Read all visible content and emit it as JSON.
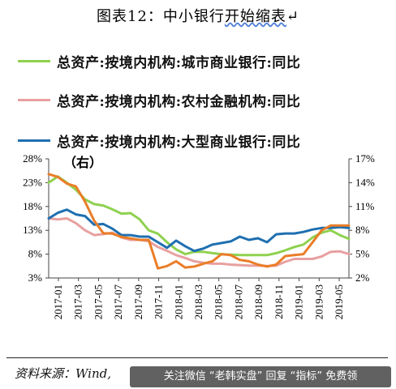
{
  "title_main": "图表12：中小银行",
  "title_underlined": "开始缩表",
  "title_tail": "↵",
  "source_text": "资料来源：Wind,",
  "watermark_text": "关注微信 “老韩实盘” 回复 “指标” 免费领",
  "chart_data": {
    "type": "line",
    "annotation": "（右）",
    "x_tick_labels": [
      "2017-01",
      "2017-03",
      "2017-05",
      "2017-07",
      "2017-09",
      "2017-11",
      "2018-01",
      "2018-03",
      "2018-05",
      "2018-07",
      "2018-09",
      "2018-11",
      "2019-01",
      "2019-03",
      "2019-05"
    ],
    "left_axis": {
      "min": 3,
      "max": 28,
      "ticks": [
        "3%",
        "8%",
        "13%",
        "18%",
        "23%",
        "28%"
      ],
      "tick_values": [
        3,
        8,
        13,
        18,
        23,
        28
      ]
    },
    "right_axis": {
      "min": 2,
      "max": 17,
      "ticks": [
        "2%",
        "5%",
        "8%",
        "11%",
        "14%",
        "17%"
      ],
      "tick_values": [
        2,
        5,
        8,
        11,
        14,
        17
      ]
    },
    "grid": false,
    "legend_position": "top",
    "series": [
      {
        "name": "总资产:按境内机构:城市商业银行:同比",
        "axis": "left",
        "color": "#8fd14f",
        "points": [
          [
            0,
            23
          ],
          [
            1,
            24.3
          ],
          [
            2,
            23
          ],
          [
            3,
            21.5
          ],
          [
            4,
            19.5
          ],
          [
            5,
            18.5
          ],
          [
            6,
            18.2
          ],
          [
            7,
            17.4
          ],
          [
            8,
            16.5
          ],
          [
            9,
            16.6
          ],
          [
            10,
            15.3
          ],
          [
            11,
            13
          ],
          [
            12,
            12.3
          ],
          [
            13,
            10.5
          ],
          [
            14,
            9
          ],
          [
            15,
            8
          ],
          [
            16,
            8.5
          ],
          [
            17,
            8.5
          ],
          [
            18,
            8.2
          ],
          [
            19,
            8
          ],
          [
            20,
            7.9
          ],
          [
            21,
            7.8
          ],
          [
            22,
            7.8
          ],
          [
            23,
            7.8
          ],
          [
            24,
            7.8
          ],
          [
            25,
            8.2
          ],
          [
            26,
            8.8
          ],
          [
            27,
            9.5
          ],
          [
            28,
            10
          ],
          [
            29,
            11.5
          ],
          [
            30,
            12.5
          ],
          [
            31,
            13
          ],
          [
            32,
            12
          ],
          [
            33,
            11.2
          ]
        ]
      },
      {
        "name": "总资产:按境内机构:农村金融机构:同比",
        "axis": "left",
        "color": "#e8a0a0",
        "points": [
          [
            0,
            15.5
          ],
          [
            1,
            15.3
          ],
          [
            2,
            15.5
          ],
          [
            3,
            14.5
          ],
          [
            4,
            13
          ],
          [
            5,
            12
          ],
          [
            6,
            12.2
          ],
          [
            7,
            12.5
          ],
          [
            8,
            11.5
          ],
          [
            9,
            11
          ],
          [
            10,
            11
          ],
          [
            11,
            10.7
          ],
          [
            12,
            9.5
          ],
          [
            13,
            8.7
          ],
          [
            14,
            7.8
          ],
          [
            15,
            7.2
          ],
          [
            16,
            6.5
          ],
          [
            17,
            6.2
          ],
          [
            18,
            6
          ],
          [
            19,
            6
          ],
          [
            20,
            5.8
          ],
          [
            21,
            5.7
          ],
          [
            22,
            5.6
          ],
          [
            23,
            5.6
          ],
          [
            24,
            5.5
          ],
          [
            25,
            5.6
          ],
          [
            26,
            6.4
          ],
          [
            27,
            7
          ],
          [
            28,
            7
          ],
          [
            29,
            7
          ],
          [
            30,
            7.5
          ],
          [
            31,
            8.5
          ],
          [
            32,
            8.6
          ],
          [
            33,
            8
          ]
        ]
      },
      {
        "name": "总资产:按境内机构:大型商业银行:同比",
        "axis": "right",
        "color": "#1f6fb0",
        "points": [
          [
            0,
            9.5
          ],
          [
            1,
            10.2
          ],
          [
            2,
            10.6
          ],
          [
            3,
            10
          ],
          [
            4,
            9.8
          ],
          [
            5,
            8.7
          ],
          [
            6,
            8.8
          ],
          [
            7,
            8.2
          ],
          [
            8,
            7.4
          ],
          [
            9,
            7.4
          ],
          [
            10,
            7.2
          ],
          [
            11,
            7.2
          ],
          [
            12,
            6.5
          ],
          [
            13,
            5.8
          ],
          [
            14,
            6.7
          ],
          [
            15,
            6
          ],
          [
            16,
            5.4
          ],
          [
            17,
            5.7
          ],
          [
            18,
            6.2
          ],
          [
            19,
            6.4
          ],
          [
            20,
            6.6
          ],
          [
            21,
            7.2
          ],
          [
            22,
            6.8
          ],
          [
            23,
            7
          ],
          [
            24,
            6.5
          ],
          [
            25,
            7.5
          ],
          [
            26,
            7.6
          ],
          [
            27,
            7.6
          ],
          [
            28,
            7.8
          ],
          [
            29,
            8.1
          ],
          [
            30,
            8.3
          ],
          [
            31,
            8.3
          ],
          [
            32,
            8.4
          ],
          [
            33,
            8.3
          ]
        ]
      },
      {
        "name": "",
        "axis": "left",
        "color": "#ea7d28",
        "points": [
          [
            0,
            24.8
          ],
          [
            1,
            24.2
          ],
          [
            2,
            22.8
          ],
          [
            3,
            22.2
          ],
          [
            4,
            19
          ],
          [
            5,
            15
          ],
          [
            6,
            12.4
          ],
          [
            7,
            12.3
          ],
          [
            8,
            11.6
          ],
          [
            9,
            11.3
          ],
          [
            10,
            11
          ],
          [
            11,
            11
          ],
          [
            12,
            5
          ],
          [
            13,
            5.5
          ],
          [
            14,
            6.5
          ],
          [
            15,
            5.2
          ],
          [
            16,
            5.4
          ],
          [
            17,
            6
          ],
          [
            18,
            6.5
          ],
          [
            19,
            8
          ],
          [
            20,
            7.8
          ],
          [
            21,
            6.8
          ],
          [
            22,
            6.5
          ],
          [
            23,
            5.8
          ],
          [
            24,
            5.4
          ],
          [
            25,
            5.8
          ],
          [
            26,
            7.6
          ],
          [
            27,
            7.8
          ],
          [
            28,
            8
          ],
          [
            29,
            10.5
          ],
          [
            30,
            13
          ],
          [
            31,
            14
          ],
          [
            32,
            14
          ],
          [
            33,
            14
          ]
        ]
      }
    ]
  }
}
